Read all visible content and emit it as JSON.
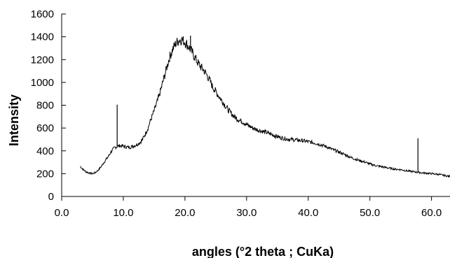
{
  "chart_data": {
    "type": "line",
    "title": "",
    "xlabel": "angles (°2 theta ; CuKa)",
    "ylabel": "Intensity",
    "xlim": [
      0,
      63
    ],
    "ylim": [
      0,
      1600
    ],
    "x_ticks": [
      0,
      10,
      20,
      30,
      40,
      50,
      60
    ],
    "x_tick_labels": [
      "0.0",
      "10.0",
      "20.0",
      "30.0",
      "40.0",
      "50.0",
      "60.0"
    ],
    "y_ticks": [
      0,
      200,
      400,
      600,
      800,
      1000,
      1200,
      1400,
      1600
    ],
    "y_tick_labels": [
      "0",
      "200",
      "400",
      "600",
      "800",
      "1000",
      "1200",
      "1400",
      "1600"
    ],
    "grid": false,
    "legend": "none",
    "line_color": "#000000",
    "series": [
      {
        "x": [
          3,
          3.5,
          4,
          4.5,
          5,
          5.5,
          6,
          6.5,
          7,
          7.5,
          8,
          8.5,
          9,
          9.5,
          10,
          10.5,
          11,
          11.5,
          12,
          12.5,
          13,
          13.5,
          14,
          14.5,
          15,
          15.5,
          16,
          16.5,
          17,
          17.5,
          18,
          18.5,
          19,
          19.5,
          20,
          20.5,
          21,
          21.5,
          22,
          22.5,
          23,
          23.5,
          24,
          24.5,
          25,
          25.5,
          26,
          26.5,
          27,
          27.5,
          28,
          28.5,
          29,
          29.5,
          30,
          31,
          32,
          33,
          34,
          35,
          36,
          37,
          38,
          39,
          40,
          41,
          42,
          43,
          44,
          45,
          46,
          47,
          48,
          49,
          50,
          51,
          52,
          53,
          54,
          55,
          56,
          57,
          58,
          59,
          60,
          61,
          62,
          63
        ],
        "y": [
          265,
          235,
          215,
          205,
          200,
          210,
          235,
          270,
          310,
          345,
          390,
          425,
          440,
          445,
          440,
          435,
          430,
          440,
          450,
          465,
          490,
          540,
          600,
          680,
          750,
          830,
          920,
          1020,
          1120,
          1220,
          1290,
          1340,
          1370,
          1375,
          1355,
          1320,
          1280,
          1230,
          1180,
          1140,
          1110,
          1070,
          1020,
          960,
          920,
          880,
          840,
          800,
          760,
          730,
          700,
          680,
          665,
          650,
          630,
          600,
          580,
          565,
          545,
          525,
          510,
          500,
          495,
          490,
          480,
          470,
          455,
          435,
          410,
          390,
          365,
          340,
          320,
          305,
          285,
          270,
          260,
          250,
          240,
          235,
          225,
          218,
          210,
          205,
          200,
          195,
          185,
          175
        ]
      }
    ],
    "spikes": [
      {
        "x": 9.0,
        "y": 805
      },
      {
        "x": 20.9,
        "y": 1410
      },
      {
        "x": 57.8,
        "y": 510
      }
    ]
  }
}
